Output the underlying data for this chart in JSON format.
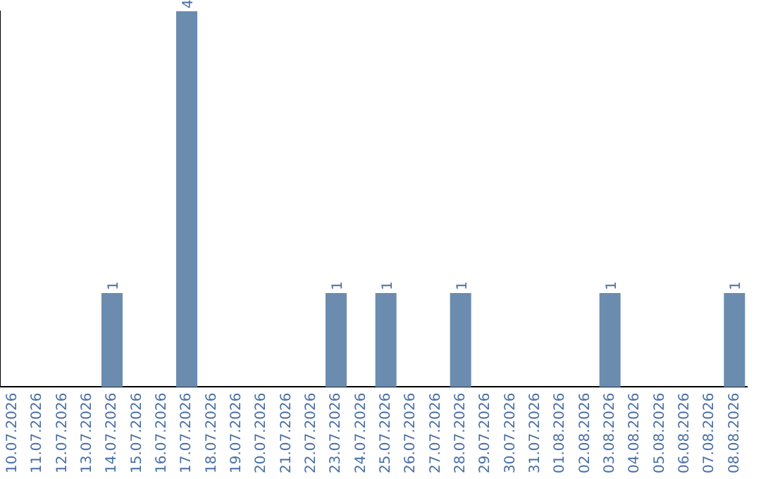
{
  "chart_data": {
    "type": "bar",
    "categories": [
      "10.07.2026",
      "11.07.2026",
      "12.07.2026",
      "13.07.2026",
      "14.07.2026",
      "15.07.2026",
      "16.07.2026",
      "17.07.2026",
      "18.07.2026",
      "19.07.2026",
      "20.07.2026",
      "21.07.2026",
      "22.07.2026",
      "23.07.2026",
      "24.07.2026",
      "25.07.2026",
      "26.07.2026",
      "27.07.2026",
      "28.07.2026",
      "29.07.2026",
      "30.07.2026",
      "31.07.2026",
      "01.08.2026",
      "02.08.2026",
      "03.08.2026",
      "04.08.2026",
      "05.08.2026",
      "06.08.2026",
      "07.08.2026",
      "08.08.2026"
    ],
    "values": [
      0,
      0,
      0,
      0,
      1,
      0,
      0,
      4,
      0,
      0,
      0,
      0,
      0,
      1,
      0,
      1,
      0,
      0,
      1,
      0,
      0,
      0,
      0,
      0,
      1,
      0,
      0,
      0,
      0,
      1
    ],
    "value_labels": [
      null,
      null,
      null,
      null,
      "1",
      null,
      null,
      "4",
      null,
      null,
      null,
      null,
      null,
      "1",
      null,
      "1",
      null,
      null,
      "1",
      null,
      null,
      null,
      null,
      null,
      "1",
      null,
      null,
      null,
      null,
      "1"
    ],
    "color": "#6b8cae",
    "tick_labels": "x",
    "grid": false,
    "legend": false
  }
}
